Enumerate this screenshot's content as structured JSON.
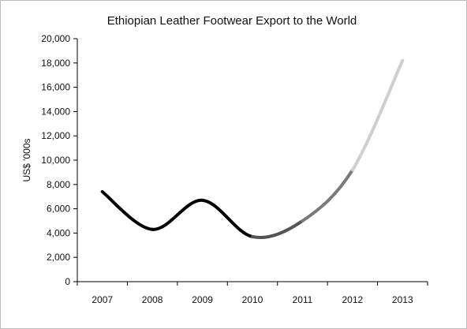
{
  "chart_data": {
    "type": "line",
    "title": "Ethiopian Leather Footwear Export to the World",
    "xlabel": "",
    "ylabel": "US$ '000s",
    "categories": [
      "2007",
      "2008",
      "2009",
      "2010",
      "2011",
      "2012",
      "2013"
    ],
    "values": [
      7400,
      4300,
      6700,
      3700,
      5000,
      9200,
      18200
    ],
    "ylim": [
      0,
      20000
    ],
    "yticks": [
      "0",
      "2,000",
      "4,000",
      "6,000",
      "8,000",
      "10,000",
      "12,000",
      "14,000",
      "16,000",
      "18,000",
      "20,000"
    ],
    "grid": false,
    "legend": "none",
    "segment_colors": [
      "#000000",
      "#000000",
      "#000000",
      "#555555",
      "#7a7a7a",
      "#cfcfcf"
    ]
  }
}
